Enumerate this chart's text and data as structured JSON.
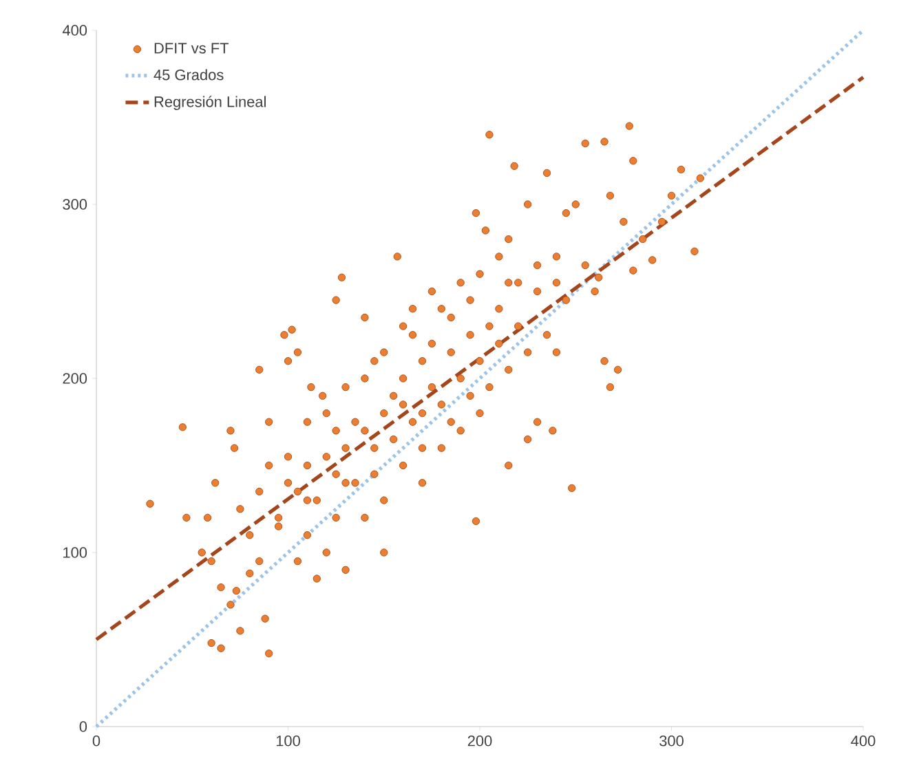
{
  "chart_data": {
    "type": "scatter",
    "xlim": [
      0,
      400
    ],
    "ylim": [
      0,
      400
    ],
    "xticks": [
      0,
      100,
      200,
      300,
      400
    ],
    "yticks": [
      0,
      100,
      200,
      300,
      400
    ],
    "grid": false,
    "legend": "top left",
    "series": [
      {
        "name": "DFIT vs FT",
        "marker": "circle",
        "color": "#ed7d31",
        "x": [
          28,
          45,
          47,
          58,
          55,
          60,
          65,
          70,
          75,
          90,
          88,
          80,
          75,
          62,
          70,
          72,
          85,
          90,
          98,
          102,
          100,
          105,
          110,
          120,
          130,
          125,
          128,
          140,
          157,
          165,
          150,
          130,
          110,
          105,
          95,
          100,
          110,
          115,
          120,
          130,
          140,
          150,
          155,
          160,
          170,
          175,
          180,
          190,
          200,
          210,
          220,
          230,
          240,
          205,
          218,
          235,
          198,
          203,
          210,
          215,
          225,
          245,
          250,
          255,
          265,
          278,
          280,
          268,
          275,
          280,
          285,
          295,
          300,
          305,
          312,
          315,
          290,
          272,
          268,
          265,
          248,
          238,
          230,
          225,
          215,
          198,
          180,
          170,
          160,
          150,
          140,
          135,
          125,
          120,
          115,
          105,
          95,
          85,
          80,
          73,
          65,
          60,
          140,
          145,
          150,
          160,
          165,
          175,
          180,
          185,
          190,
          195,
          200,
          210,
          220,
          135,
          125,
          118,
          112,
          145,
          155,
          165,
          170,
          185,
          195,
          205,
          215,
          225,
          235,
          240,
          245,
          255,
          260,
          262,
          170,
          185,
          190,
          200,
          130,
          110,
          100,
          90,
          85,
          125,
          145,
          160,
          175,
          195,
          205,
          215,
          230,
          240
        ],
        "values": [
          128,
          172,
          120,
          120,
          100,
          48,
          45,
          70,
          55,
          42,
          62,
          110,
          125,
          140,
          170,
          160,
          205,
          175,
          225,
          228,
          210,
          215,
          175,
          180,
          195,
          245,
          258,
          235,
          270,
          225,
          100,
          90,
          110,
          95,
          120,
          140,
          150,
          130,
          155,
          160,
          170,
          180,
          190,
          200,
          210,
          195,
          185,
          200,
          210,
          220,
          230,
          250,
          255,
          340,
          322,
          318,
          295,
          285,
          270,
          280,
          300,
          295,
          300,
          335,
          336,
          345,
          325,
          305,
          290,
          262,
          280,
          290,
          305,
          320,
          273,
          315,
          268,
          205,
          195,
          210,
          137,
          170,
          175,
          165,
          150,
          118,
          160,
          140,
          150,
          130,
          120,
          140,
          120,
          100,
          85,
          135,
          115,
          95,
          88,
          78,
          80,
          95,
          200,
          210,
          215,
          230,
          240,
          250,
          240,
          235,
          255,
          245,
          260,
          240,
          255,
          175,
          170,
          190,
          195,
          160,
          165,
          175,
          180,
          215,
          190,
          195,
          205,
          215,
          225,
          215,
          245,
          265,
          250,
          258,
          160,
          175,
          170,
          180,
          140,
          130,
          155,
          150,
          135,
          145,
          145,
          185,
          220,
          225,
          230,
          255,
          265,
          270
        ]
      },
      {
        "name": "45 Grados",
        "type": "line",
        "color": "#9dc3e6",
        "line_style": "dotted",
        "marker": "none",
        "x": [
          0,
          400
        ],
        "values": [
          0,
          400
        ]
      },
      {
        "name": "Regresión Lineal",
        "type": "line",
        "color": "#a5451b",
        "line_style": "dashed",
        "marker": "none",
        "x": [
          0,
          400
        ],
        "values": [
          50,
          373
        ]
      }
    ]
  }
}
